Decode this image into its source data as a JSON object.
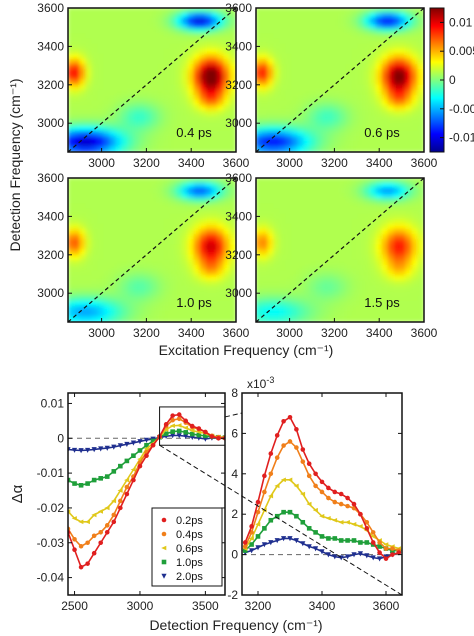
{
  "chart_data": [
    {
      "type": "heatmap",
      "layout": "2x2 grid",
      "xlabel": "Excitation Frequency (cm⁻¹)",
      "ylabel": "Detection Frequency (cm⁻¹)",
      "xlim": [
        2850,
        3600
      ],
      "ylim": [
        2850,
        3600
      ],
      "xticks": [
        "3000",
        "3200",
        "3400",
        "3600"
      ],
      "yticks": [
        "3000",
        "3200",
        "3400",
        "3600"
      ],
      "diagonal_line": "dashed",
      "colormap": "jet",
      "colorbar": {
        "ticks": [
          "0.01",
          "0.005",
          "0",
          "-0.005",
          "-0.01"
        ],
        "range": [
          -0.0125,
          0.0125
        ]
      },
      "panels": [
        {
          "label": "0.4 ps",
          "amplitude": 1.0
        },
        {
          "label": "0.6 ps",
          "amplitude": 0.92
        },
        {
          "label": "1.0 ps",
          "amplitude": 0.74
        },
        {
          "label": "1.5 ps",
          "amplitude": 0.6
        }
      ]
    },
    {
      "type": "line",
      "xlabel": "Detection Frequency (cm⁻¹)",
      "ylabel": "Δα",
      "xlim": [
        2450,
        3650
      ],
      "ylim": [
        -0.045,
        0.013
      ],
      "xticks": [
        "2500",
        "3000",
        "3500"
      ],
      "yticks": [
        "0.01",
        "0",
        "-0.01",
        "-0.02",
        "-0.03",
        "-0.04"
      ],
      "zero_line": "dashed",
      "zoom_box": {
        "x": [
          3150,
          3650
        ],
        "y": [
          -0.002,
          0.009
        ]
      },
      "legend": "inside lower-right",
      "series": [
        {
          "name": "0.2ps",
          "color": "#e01f1f",
          "marker": "circle",
          "x": [
            2450,
            2500,
            2550,
            2600,
            2650,
            2700,
            2750,
            2800,
            2850,
            2900,
            2950,
            3000,
            3050,
            3100,
            3150,
            3200,
            3250,
            3300,
            3350,
            3400,
            3450,
            3500,
            3550,
            3600,
            3650
          ],
          "y": [
            -0.027,
            -0.032,
            -0.037,
            -0.036,
            -0.033,
            -0.03,
            -0.027,
            -0.024,
            -0.02,
            -0.016,
            -0.012,
            -0.008,
            -0.005,
            -0.002,
            0.0005,
            0.004,
            0.0065,
            0.0068,
            0.005,
            0.0035,
            0.0028,
            0.0018,
            0.0005,
            0.0,
            0.0
          ]
        },
        {
          "name": "0.4ps",
          "color": "#f07f1a",
          "marker": "circle",
          "x": [
            2450,
            2500,
            2550,
            2600,
            2650,
            2700,
            2750,
            2800,
            2850,
            2900,
            2950,
            3000,
            3050,
            3100,
            3150,
            3200,
            3250,
            3300,
            3350,
            3400,
            3450,
            3500,
            3550,
            3600,
            3650
          ],
          "y": [
            -0.026,
            -0.029,
            -0.031,
            -0.03,
            -0.028,
            -0.027,
            -0.025,
            -0.022,
            -0.018,
            -0.014,
            -0.011,
            -0.007,
            -0.004,
            -0.002,
            0.0005,
            0.0035,
            0.0052,
            0.0056,
            0.0045,
            0.0032,
            0.0026,
            0.0018,
            0.0007,
            0.0003,
            0.0002
          ]
        },
        {
          "name": "0.6ps",
          "color": "#e0c81a",
          "marker": "triangle-left",
          "x": [
            2450,
            2500,
            2550,
            2600,
            2650,
            2700,
            2750,
            2800,
            2850,
            2900,
            2950,
            3000,
            3050,
            3100,
            3150,
            3200,
            3250,
            3300,
            3350,
            3400,
            3450,
            3500,
            3550,
            3600,
            3650
          ],
          "y": [
            -0.021,
            -0.023,
            -0.024,
            -0.024,
            -0.022,
            -0.021,
            -0.02,
            -0.018,
            -0.015,
            -0.012,
            -0.009,
            -0.006,
            -0.003,
            -0.0015,
            0.0004,
            0.0025,
            0.0036,
            0.0037,
            0.003,
            0.0022,
            0.0018,
            0.0014,
            0.0007,
            0.0004,
            0.0003
          ]
        },
        {
          "name": "1.0ps",
          "color": "#1f9f3a",
          "marker": "square",
          "x": [
            2450,
            2500,
            2550,
            2600,
            2650,
            2700,
            2750,
            2800,
            2850,
            2900,
            2950,
            3000,
            3050,
            3100,
            3150,
            3200,
            3250,
            3300,
            3350,
            3400,
            3450,
            3500,
            3550,
            3600,
            3650
          ],
          "y": [
            -0.012,
            -0.013,
            -0.0135,
            -0.013,
            -0.012,
            -0.0115,
            -0.011,
            -0.0095,
            -0.008,
            -0.0065,
            -0.005,
            -0.0035,
            -0.002,
            -0.0008,
            0.0003,
            0.0013,
            0.0019,
            0.0021,
            0.0017,
            0.0012,
            0.0009,
            0.0007,
            0.0005,
            0.0003,
            0.0002
          ]
        },
        {
          "name": "2.0ps",
          "color": "#1f2f8f",
          "marker": "triangle-down",
          "x": [
            2450,
            2500,
            2550,
            2600,
            2650,
            2700,
            2750,
            2800,
            2850,
            2900,
            2950,
            3000,
            3050,
            3100,
            3150,
            3200,
            3250,
            3300,
            3350,
            3400,
            3450,
            3500,
            3550,
            3600,
            3650
          ],
          "y": [
            -0.0032,
            -0.0034,
            -0.0035,
            -0.0034,
            -0.0032,
            -0.003,
            -0.0028,
            -0.0025,
            -0.0021,
            -0.0017,
            -0.0013,
            -0.0009,
            -0.0005,
            -0.0002,
            0.0002,
            0.0006,
            0.0008,
            0.0008,
            0.0006,
            0.0003,
            0.0001,
            -0.0002,
            0.0001,
            0.0001,
            0.0
          ]
        }
      ]
    },
    {
      "type": "line",
      "title": "",
      "xlabel": "",
      "ylabel": "",
      "xlim": [
        3150,
        3650
      ],
      "ylim": [
        -2,
        8
      ],
      "multiplier": "x10",
      "multiplier_exp": "-3",
      "xticks": [
        "3200",
        "3400",
        "3600"
      ],
      "yticks": [
        "8",
        "6",
        "4",
        "2",
        "0",
        "-2"
      ],
      "zero_line": "dashed",
      "series": [
        {
          "name": "0.2ps",
          "color": "#e01f1f",
          "marker": "circle",
          "x": [
            3160,
            3180,
            3200,
            3220,
            3240,
            3260,
            3280,
            3300,
            3320,
            3340,
            3360,
            3380,
            3400,
            3420,
            3440,
            3460,
            3480,
            3500,
            3520,
            3540,
            3560,
            3580,
            3600,
            3620,
            3640
          ],
          "y": [
            0.6,
            1.4,
            2.6,
            3.9,
            5.0,
            5.9,
            6.6,
            6.8,
            6.2,
            5.2,
            4.5,
            4.0,
            3.6,
            3.3,
            3.1,
            3.0,
            2.8,
            2.5,
            2.0,
            1.3,
            0.6,
            0.1,
            -0.2,
            0.0,
            0.1
          ]
        },
        {
          "name": "0.4ps",
          "color": "#f07f1a",
          "marker": "circle",
          "x": [
            3160,
            3180,
            3200,
            3220,
            3240,
            3260,
            3280,
            3300,
            3320,
            3340,
            3360,
            3380,
            3400,
            3420,
            3440,
            3460,
            3480,
            3500,
            3520,
            3540,
            3560,
            3580,
            3600,
            3620,
            3640
          ],
          "y": [
            0.4,
            1.1,
            2.1,
            3.1,
            4.0,
            4.8,
            5.4,
            5.6,
            5.3,
            4.6,
            3.9,
            3.4,
            3.1,
            2.8,
            2.6,
            2.5,
            2.4,
            2.3,
            2.0,
            1.6,
            1.1,
            0.6,
            0.3,
            0.3,
            0.2
          ]
        },
        {
          "name": "0.6ps",
          "color": "#e0c81a",
          "marker": "triangle-left",
          "x": [
            3160,
            3180,
            3200,
            3220,
            3240,
            3260,
            3280,
            3300,
            3320,
            3340,
            3360,
            3380,
            3400,
            3420,
            3440,
            3460,
            3480,
            3500,
            3520,
            3540,
            3560,
            3580,
            3600,
            3620,
            3640
          ],
          "y": [
            0.3,
            0.8,
            1.5,
            2.2,
            2.9,
            3.4,
            3.7,
            3.7,
            3.4,
            3.0,
            2.5,
            2.2,
            1.9,
            1.8,
            1.7,
            1.6,
            1.6,
            1.5,
            1.4,
            1.2,
            0.9,
            0.7,
            0.5,
            0.4,
            0.3
          ]
        },
        {
          "name": "1.0ps",
          "color": "#1f9f3a",
          "marker": "square",
          "x": [
            3160,
            3180,
            3200,
            3220,
            3240,
            3260,
            3280,
            3300,
            3320,
            3340,
            3360,
            3380,
            3400,
            3420,
            3440,
            3460,
            3480,
            3500,
            3520,
            3540,
            3560,
            3580,
            3600,
            3620,
            3640
          ],
          "y": [
            0.2,
            0.5,
            0.9,
            1.3,
            1.7,
            1.9,
            2.1,
            2.1,
            1.9,
            1.6,
            1.3,
            1.1,
            0.9,
            0.8,
            0.8,
            0.7,
            0.7,
            0.7,
            0.6,
            0.6,
            0.5,
            0.4,
            0.3,
            0.2,
            0.2
          ]
        },
        {
          "name": "2.0ps",
          "color": "#1f2f8f",
          "marker": "triangle-down",
          "x": [
            3160,
            3180,
            3200,
            3220,
            3240,
            3260,
            3280,
            3300,
            3320,
            3340,
            3360,
            3380,
            3400,
            3420,
            3440,
            3460,
            3480,
            3500,
            3520,
            3540,
            3560,
            3580,
            3600,
            3620,
            3640
          ],
          "y": [
            0.1,
            0.2,
            0.35,
            0.5,
            0.6,
            0.7,
            0.8,
            0.8,
            0.7,
            0.55,
            0.4,
            0.3,
            0.15,
            0.0,
            -0.1,
            -0.15,
            -0.1,
            0.0,
            0.05,
            -0.05,
            -0.15,
            -0.2,
            -0.1,
            0.0,
            0.1
          ]
        }
      ]
    }
  ]
}
